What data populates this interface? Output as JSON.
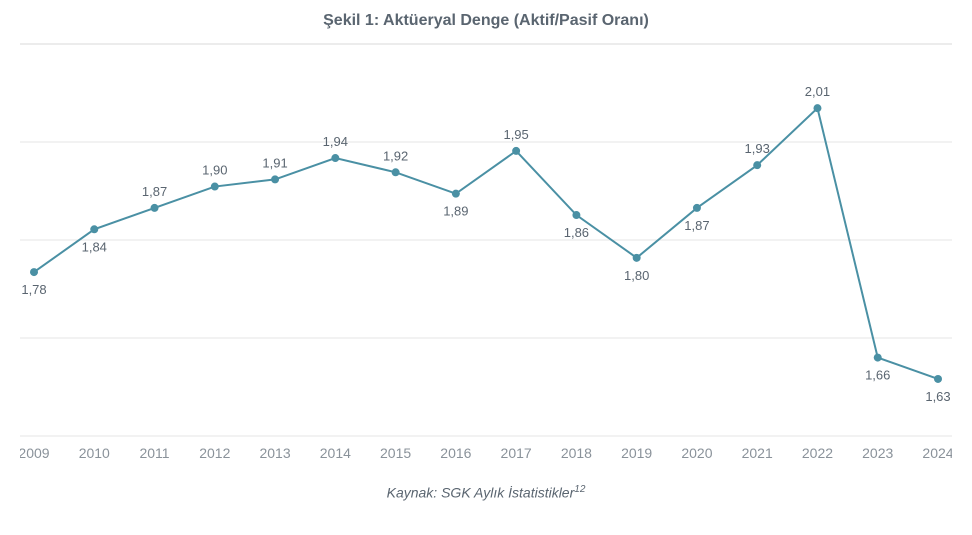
{
  "chart": {
    "type": "line",
    "title": "Şekil 1: Aktüeryal Denge (Aktif/Pasif Oranı)",
    "source_prefix": "Kaynak: ",
    "source_text": "SGK Aylık İstatistikler",
    "source_sup": "12",
    "categories": [
      "2009",
      "2010",
      "2011",
      "2012",
      "2013",
      "2014",
      "2015",
      "2016",
      "2017",
      "2018",
      "2019",
      "2020",
      "2021",
      "2022",
      "2023",
      "2024"
    ],
    "values": [
      1.78,
      1.84,
      1.87,
      1.9,
      1.91,
      1.94,
      1.92,
      1.89,
      1.95,
      1.86,
      1.8,
      1.87,
      1.93,
      2.01,
      1.66,
      1.63
    ],
    "data_labels": [
      "1,78",
      "1,84",
      "1,87",
      "1,90",
      "1,91",
      "1,94",
      "1,92",
      "1,89",
      "1,95",
      "1,86",
      "1,80",
      "1,87",
      "1,93",
      "2,01",
      "1,66",
      "1,63"
    ],
    "label_positions": [
      "below",
      "below",
      "above",
      "above",
      "above",
      "above",
      "above",
      "below",
      "above",
      "below",
      "below",
      "below",
      "above",
      "above",
      "below",
      "below"
    ],
    "ylim": [
      1.55,
      2.1
    ],
    "line_color": "#4a90a4",
    "marker_color": "#4a90a4",
    "marker_radius": 4,
    "line_width": 2,
    "background_color": "#ffffff",
    "grid_color": "#e6e6e6",
    "title_fontsize": 16,
    "label_fontsize": 13,
    "axis_fontsize": 14,
    "text_color": "#5a6570",
    "axis_text_color": "#8a929a"
  }
}
